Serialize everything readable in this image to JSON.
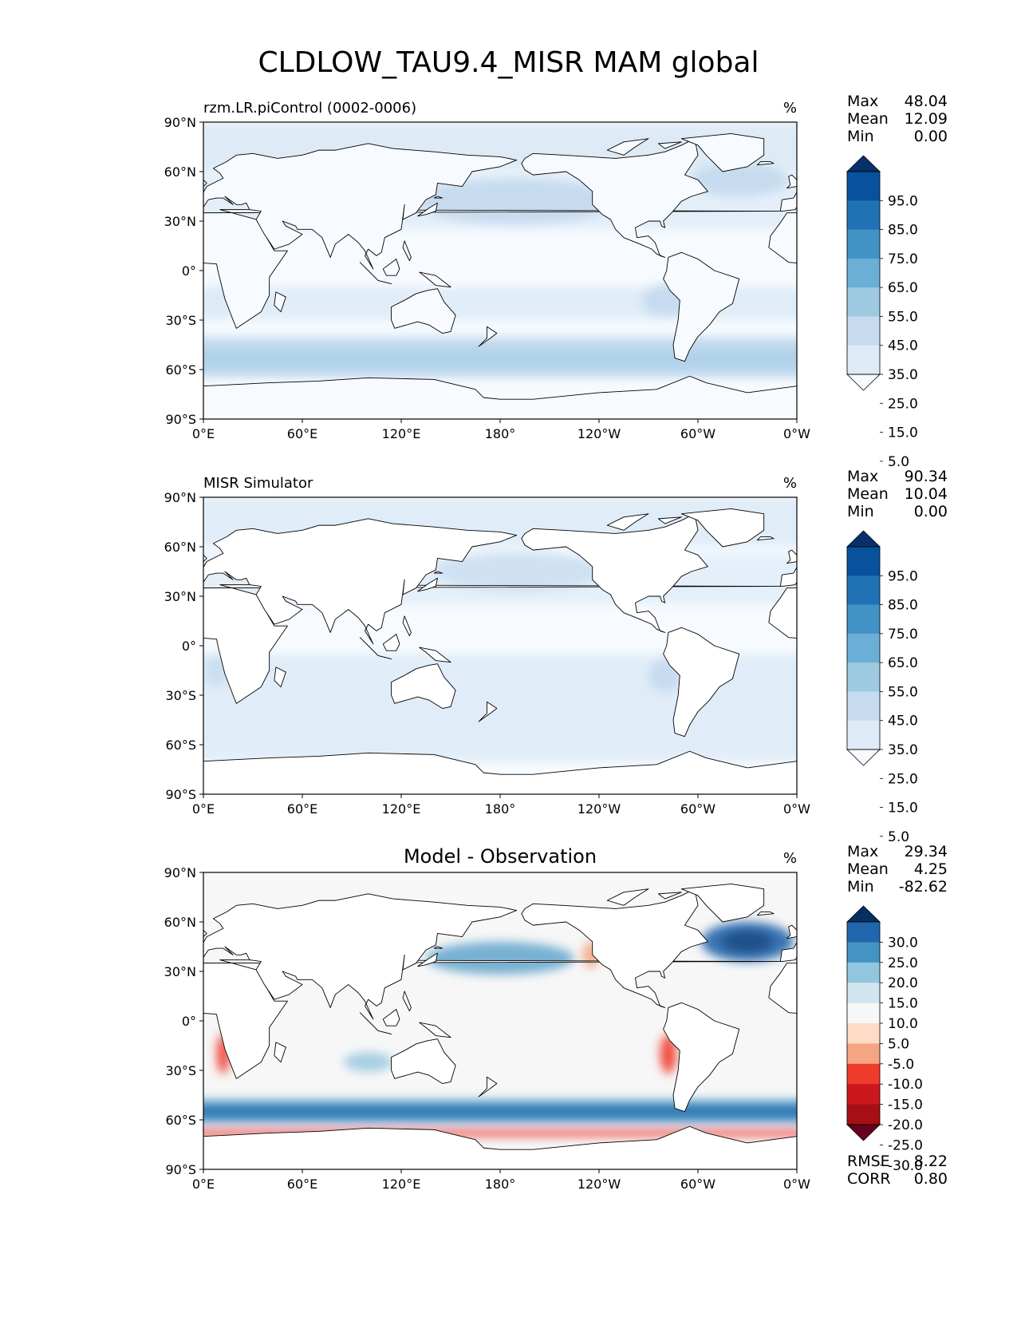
{
  "title": "CLDLOW_TAU9.4_MISR MAM global",
  "colors": {
    "seq": [
      "#f7fbff",
      "#deebf7",
      "#c6dbef",
      "#9ecae1",
      "#6baed6",
      "#4292c6",
      "#2171b5",
      "#08519c",
      "#08306b"
    ],
    "div": [
      "#67001f",
      "#a50f15",
      "#cb181d",
      "#ef3b2c",
      "#f4a582",
      "#fddbc7",
      "#f7f7f7",
      "#d1e5f0",
      "#92c5de",
      "#4393c3",
      "#2166ac",
      "#053061"
    ],
    "land_line": "#000000",
    "ocean_low": "#eef4fb"
  },
  "chart_data": [
    {
      "type": "heatmap",
      "name": "model",
      "title_left": "rzm.LR.piControl (0002-0006)",
      "title_center": "",
      "units": "%",
      "stats": [
        [
          "Max",
          "48.04"
        ],
        [
          "Mean",
          "12.09"
        ],
        [
          "Min",
          "0.00"
        ]
      ],
      "colorbar_levels": [
        "95.0",
        "85.0",
        "75.0",
        "65.0",
        "55.0",
        "45.0",
        "35.0",
        "25.0",
        "15.0",
        "5.0"
      ],
      "xlabels": [
        "0°E",
        "60°E",
        "120°E",
        "180°",
        "120°W",
        "60°W",
        "0°W"
      ],
      "ylabels": [
        "90°N",
        "60°N",
        "30°N",
        "0°",
        "30°S",
        "60°S",
        "90°S"
      ],
      "xlim": [
        0,
        360
      ],
      "ylim": [
        -90,
        90
      ]
    },
    {
      "type": "heatmap",
      "name": "obs",
      "title_left": "MISR Simulator",
      "title_center": "",
      "units": "%",
      "stats": [
        [
          "Max",
          "90.34"
        ],
        [
          "Mean",
          "10.04"
        ],
        [
          "Min",
          "0.00"
        ]
      ],
      "colorbar_levels": [
        "95.0",
        "85.0",
        "75.0",
        "65.0",
        "55.0",
        "45.0",
        "35.0",
        "25.0",
        "15.0",
        "5.0"
      ],
      "xlabels": [
        "0°E",
        "60°E",
        "120°E",
        "180°",
        "120°W",
        "60°W",
        "0°W"
      ],
      "ylabels": [
        "90°N",
        "60°N",
        "30°N",
        "0°",
        "30°S",
        "60°S",
        "90°S"
      ],
      "xlim": [
        0,
        360
      ],
      "ylim": [
        -90,
        90
      ]
    },
    {
      "type": "heatmap",
      "name": "diff",
      "title_left": "",
      "title_center": "Model - Observation",
      "units": "%",
      "stats": [
        [
          "Max",
          "29.34"
        ],
        [
          "Mean",
          "4.25"
        ],
        [
          "Min",
          "-82.62"
        ]
      ],
      "colorbar_levels": [
        "30.0",
        "25.0",
        "20.0",
        "15.0",
        "10.0",
        "5.0",
        "-5.0",
        "-10.0",
        "-15.0",
        "-20.0",
        "-25.0",
        "-30.0"
      ],
      "metrics": [
        [
          "RMSE",
          "8.22"
        ],
        [
          "CORR",
          "0.80"
        ]
      ],
      "xlabels": [
        "0°E",
        "60°E",
        "120°E",
        "180°",
        "120°W",
        "60°W",
        "0°W"
      ],
      "ylabels": [
        "90°N",
        "60°N",
        "30°N",
        "0°",
        "30°S",
        "60°S",
        "90°S"
      ],
      "xlim": [
        0,
        360
      ],
      "ylim": [
        -90,
        90
      ]
    }
  ]
}
